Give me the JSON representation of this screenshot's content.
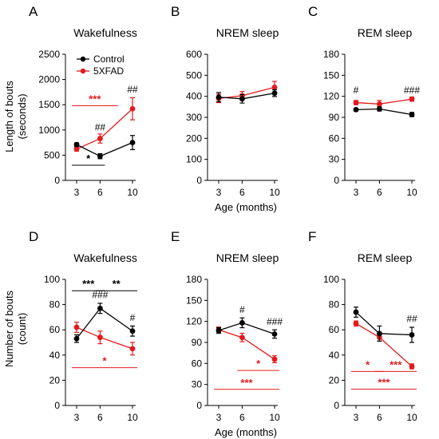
{
  "figure": {
    "row_ylabels": [
      [
        "Length of bouts",
        "(seconds)"
      ],
      [
        "Number of bouts",
        "(count)"
      ]
    ],
    "xlabel": "Age (months)",
    "legend": [
      {
        "name": "Control",
        "color": "#000000"
      },
      {
        "name": "5XFAD",
        "color": "#e31a1c"
      }
    ]
  },
  "chart_data": [
    {
      "type": "line",
      "letter": "A",
      "title": "Wakefulness",
      "categories": [
        "3",
        "6",
        "10"
      ],
      "ylim": [
        0,
        2500
      ],
      "yticks": [
        0,
        500,
        1000,
        1500,
        2000,
        2500
      ],
      "show_legend": true,
      "show_xlabel": false,
      "ylabel_row": 0,
      "series": [
        {
          "name": "Control",
          "color": "#000000",
          "values": [
            710,
            480,
            750
          ],
          "err": [
            35,
            50,
            140
          ]
        },
        {
          "name": "5XFAD",
          "color": "#e31a1c",
          "values": [
            620,
            830,
            1420
          ],
          "err": [
            40,
            90,
            220
          ]
        }
      ],
      "annotations": [
        {
          "text": "##",
          "color": "#000000",
          "x": 1,
          "y": 990
        },
        {
          "text": "##",
          "color": "#000000",
          "x": 2,
          "y": 1740
        }
      ],
      "brackets": [
        {
          "text": "***",
          "color": "#e31a1c",
          "from": 0,
          "to": 1.4,
          "y": 1480
        },
        {
          "text": "*",
          "color": "#000000",
          "from": 0,
          "to": 1,
          "y": 300
        }
      ]
    },
    {
      "type": "line",
      "letter": "B",
      "title": "NREM sleep",
      "categories": [
        "3",
        "6",
        "10"
      ],
      "ylim": [
        0,
        600
      ],
      "yticks": [
        0,
        100,
        200,
        300,
        400,
        500,
        600
      ],
      "show_legend": false,
      "show_xlabel": true,
      "ylabel_row": null,
      "series": [
        {
          "name": "Control",
          "color": "#000000",
          "values": [
            396,
            388,
            415
          ],
          "err": [
            22,
            20,
            16
          ]
        },
        {
          "name": "5XFAD",
          "color": "#e31a1c",
          "values": [
            390,
            403,
            443
          ],
          "err": [
            20,
            20,
            28
          ]
        }
      ],
      "annotations": [],
      "brackets": []
    },
    {
      "type": "line",
      "letter": "C",
      "title": "REM sleep",
      "categories": [
        "3",
        "6",
        "10"
      ],
      "ylim": [
        0,
        180
      ],
      "yticks": [
        0,
        30,
        60,
        90,
        120,
        150,
        180
      ],
      "show_legend": false,
      "show_xlabel": false,
      "ylabel_row": null,
      "series": [
        {
          "name": "Control",
          "color": "#000000",
          "values": [
            101,
            102,
            94
          ],
          "err": [
            2,
            3,
            3
          ]
        },
        {
          "name": "5XFAD",
          "color": "#e31a1c",
          "values": [
            111,
            109,
            116
          ],
          "err": [
            3,
            5,
            3
          ]
        }
      ],
      "annotations": [
        {
          "text": "#",
          "color": "#000000",
          "x": 0,
          "y": 124
        },
        {
          "text": "###",
          "color": "#000000",
          "x": 2,
          "y": 124
        }
      ],
      "brackets": []
    },
    {
      "type": "line",
      "letter": "D",
      "title": "Wakefulness",
      "categories": [
        "3",
        "6",
        "10"
      ],
      "ylim": [
        0,
        100
      ],
      "yticks": [
        0,
        20,
        40,
        60,
        80,
        100
      ],
      "show_legend": false,
      "show_xlabel": false,
      "ylabel_row": 1,
      "series": [
        {
          "name": "Control",
          "color": "#000000",
          "values": [
            53,
            77,
            59
          ],
          "err": [
            3,
            4,
            4
          ]
        },
        {
          "name": "5XFAD",
          "color": "#e31a1c",
          "values": [
            62,
            54,
            45
          ],
          "err": [
            4,
            5,
            5
          ]
        }
      ],
      "annotations": [
        {
          "text": "###",
          "color": "#000000",
          "x": 1,
          "y": 85
        },
        {
          "text": "#",
          "color": "#000000",
          "x": 2,
          "y": 67
        }
      ],
      "brackets": [
        {
          "text": "***",
          "color": "#000000",
          "from": 0,
          "to": 1,
          "y": 91
        },
        {
          "text": "**",
          "color": "#000000",
          "from": 1,
          "to": 2,
          "y": 91
        },
        {
          "text": "*",
          "color": "#e31a1c",
          "from": 0,
          "to": 2,
          "y": 30
        }
      ]
    },
    {
      "type": "line",
      "letter": "E",
      "title": "NREM sleep",
      "categories": [
        "3",
        "6",
        "10"
      ],
      "ylim": [
        0,
        180
      ],
      "yticks": [
        0,
        30,
        60,
        90,
        120,
        150,
        180
      ],
      "show_legend": false,
      "show_xlabel": true,
      "ylabel_row": null,
      "series": [
        {
          "name": "Control",
          "color": "#000000",
          "values": [
            107,
            118,
            102
          ],
          "err": [
            4,
            7,
            6
          ]
        },
        {
          "name": "5XFAD",
          "color": "#e31a1c",
          "values": [
            108,
            97,
            66
          ],
          "err": [
            4,
            6,
            5
          ]
        }
      ],
      "annotations": [
        {
          "text": "#",
          "color": "#000000",
          "x": 1,
          "y": 132
        },
        {
          "text": "###",
          "color": "#000000",
          "x": 2,
          "y": 115
        }
      ],
      "brackets": [
        {
          "text": "*",
          "color": "#e31a1c",
          "from": 1,
          "to": 2,
          "y": 50
        },
        {
          "text": "***",
          "color": "#e31a1c",
          "from": 0,
          "to": 2,
          "y": 23
        }
      ]
    },
    {
      "type": "line",
      "letter": "F",
      "title": "REM sleep",
      "categories": [
        "3",
        "6",
        "10"
      ],
      "ylim": [
        0,
        100
      ],
      "yticks": [
        0,
        20,
        40,
        60,
        80,
        100
      ],
      "show_legend": false,
      "show_xlabel": false,
      "ylabel_row": null,
      "series": [
        {
          "name": "Control",
          "color": "#000000",
          "values": [
            74,
            57,
            56
          ],
          "err": [
            4,
            6,
            6
          ]
        },
        {
          "name": "5XFAD",
          "color": "#e31a1c",
          "values": [
            65,
            54,
            31
          ],
          "err": [
            2,
            3,
            2
          ]
        }
      ],
      "annotations": [
        {
          "text": "##",
          "color": "#000000",
          "x": 2,
          "y": 66
        }
      ],
      "brackets": [
        {
          "text": "*",
          "color": "#e31a1c",
          "from": 0,
          "to": 1,
          "y": 27
        },
        {
          "text": "***",
          "color": "#e31a1c",
          "from": 1,
          "to": 2,
          "y": 27
        },
        {
          "text": "***",
          "color": "#e31a1c",
          "from": 0,
          "to": 2,
          "y": 13
        }
      ]
    }
  ]
}
